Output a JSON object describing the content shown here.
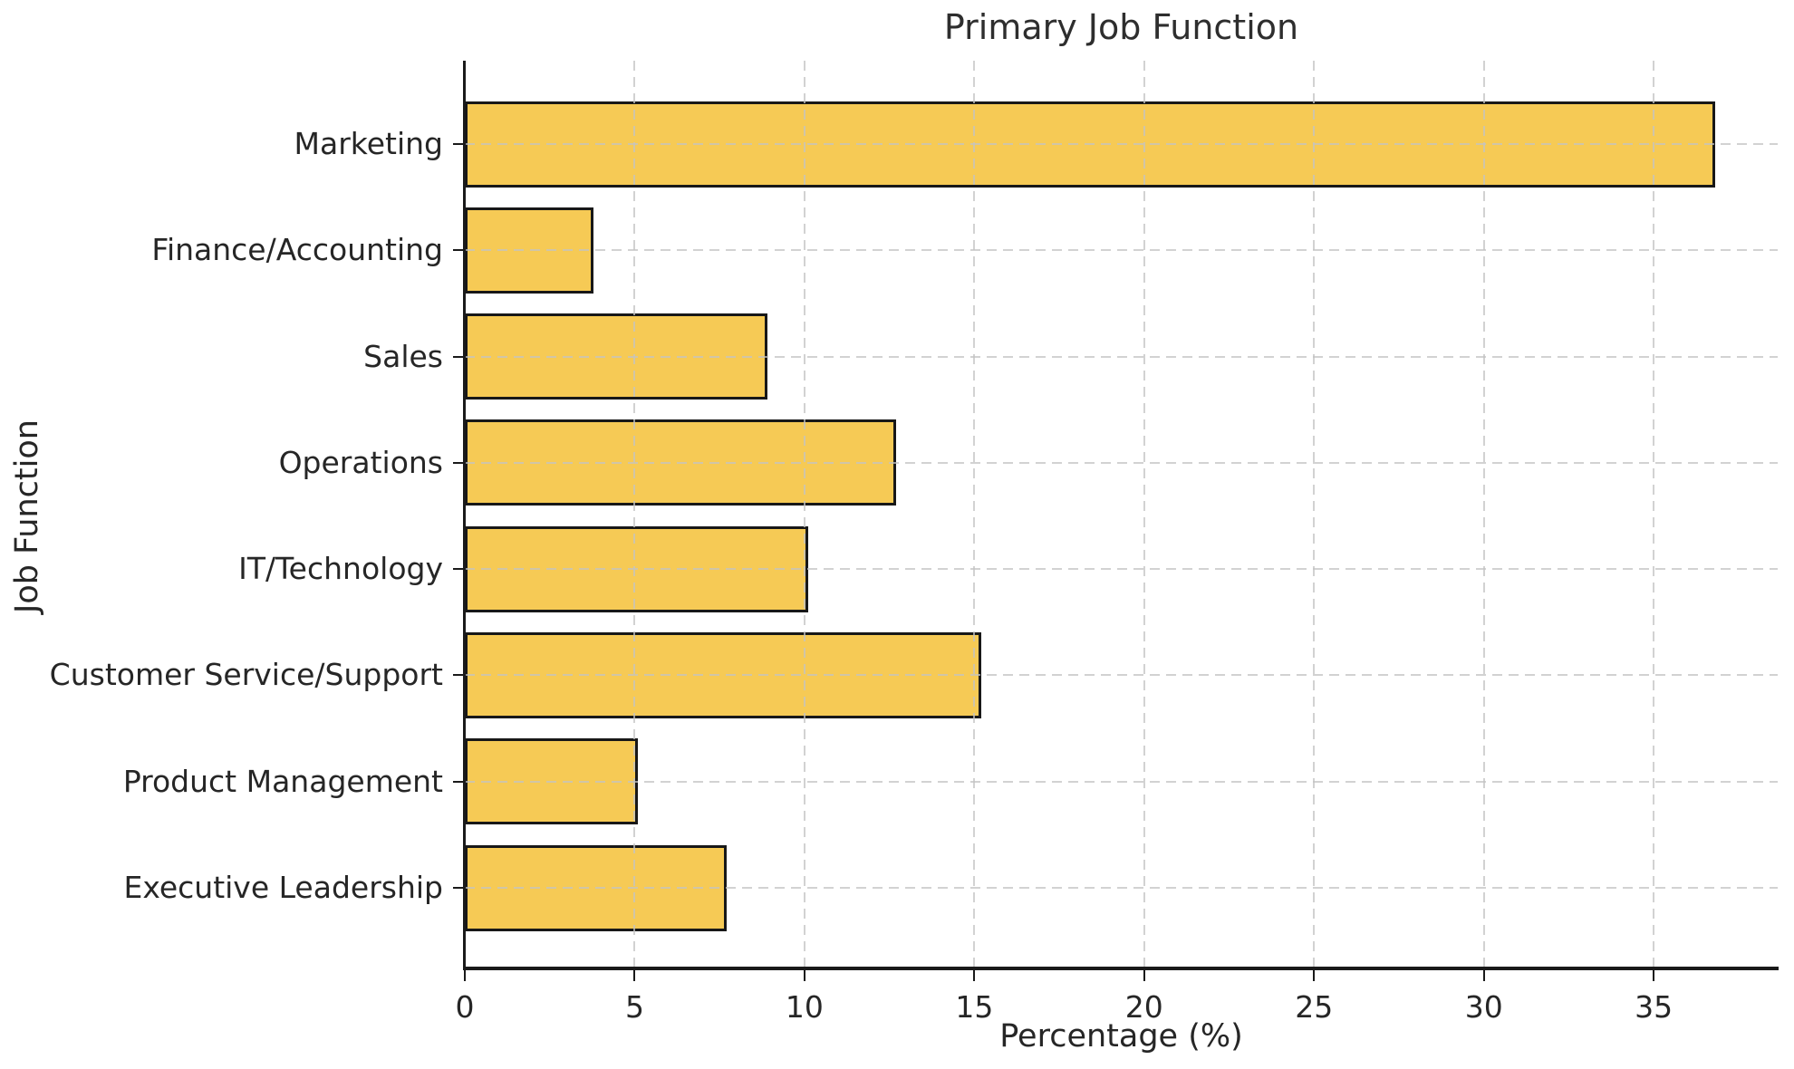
{
  "chart_data": {
    "type": "bar",
    "orientation": "horizontal",
    "title": "Primary Job Function",
    "xlabel": "Percentage (%)",
    "ylabel": "Job Function",
    "categories": [
      "Marketing",
      "Finance/Accounting",
      "Sales",
      "Operations",
      "IT/Technology",
      "Customer Service/Support",
      "Product Management",
      "Executive Leadership"
    ],
    "values": [
      36.8,
      3.8,
      8.9,
      12.7,
      10.1,
      15.2,
      5.1,
      7.7
    ],
    "xticks": [
      0,
      5,
      10,
      15,
      20,
      25,
      30,
      35
    ],
    "xlim": [
      0,
      38.65
    ],
    "grid": true,
    "grid_style": "dashed",
    "legend": false,
    "style": {
      "bar_fill": "#F6CA55",
      "bar_edge": "#181818",
      "grid_color": "#c9c9c9",
      "spine_color": "#1a1a1a",
      "text_color": "#262626",
      "background": "#ffffff"
    }
  }
}
